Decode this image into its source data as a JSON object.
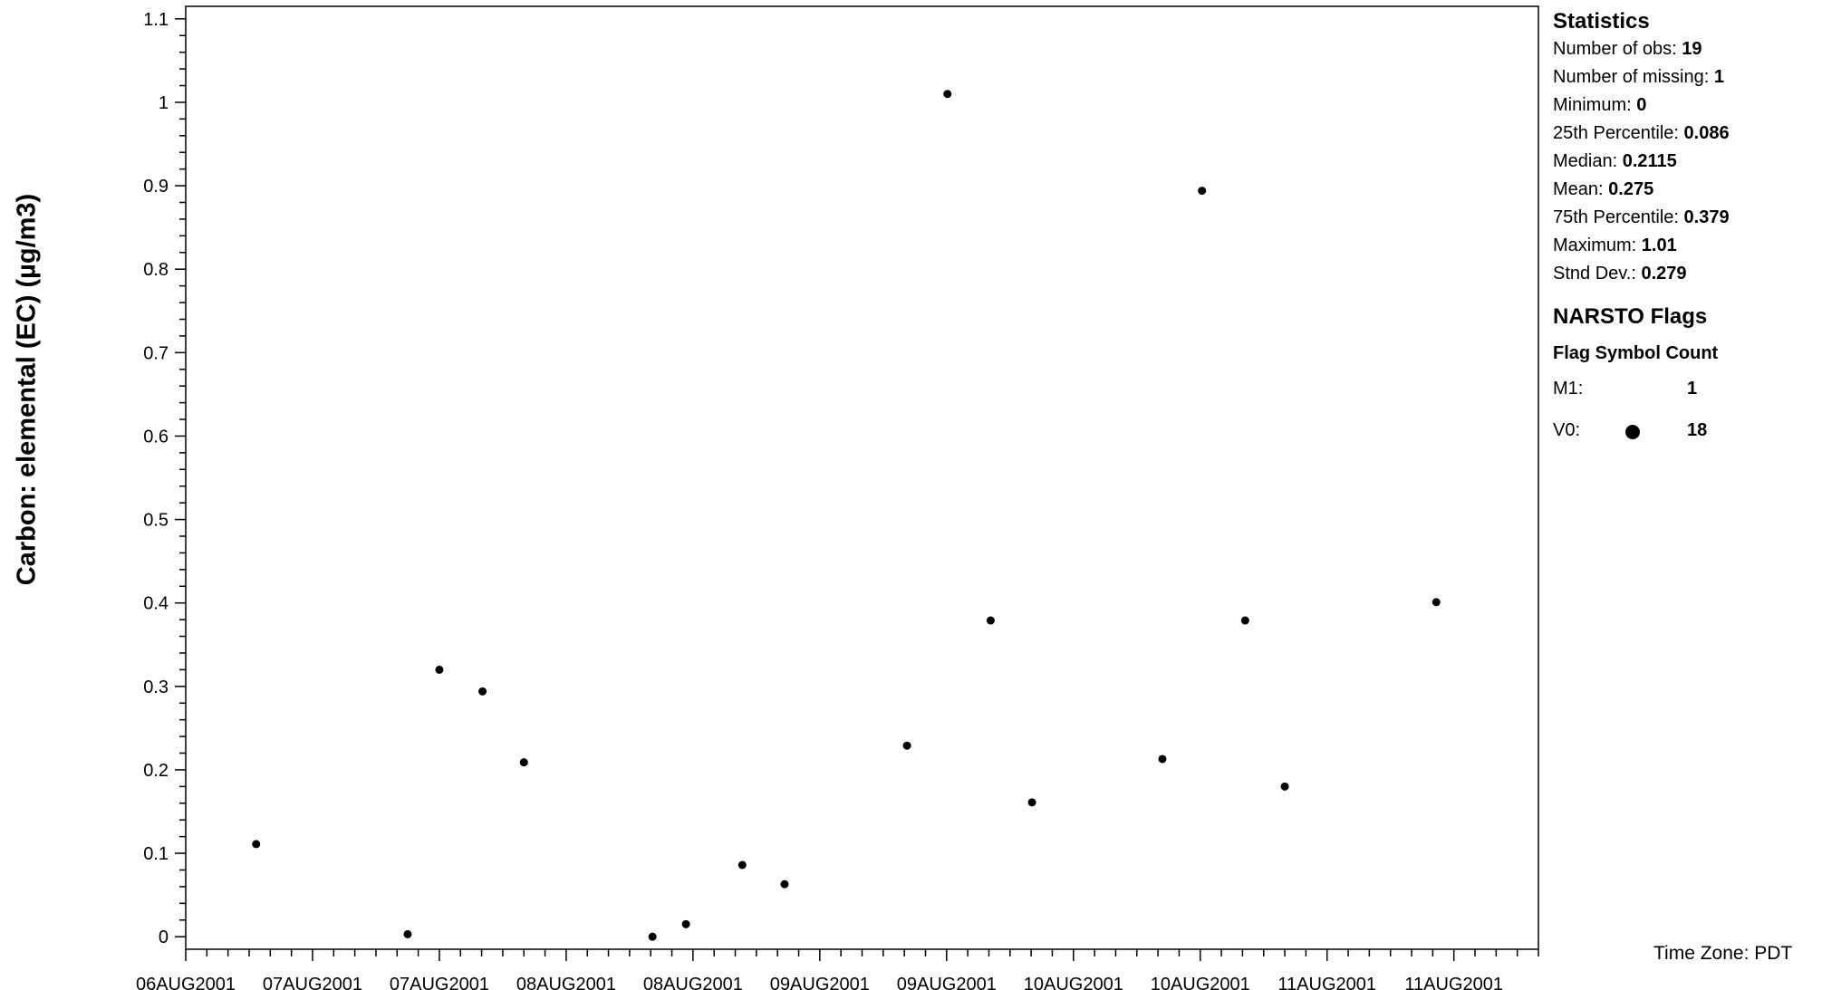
{
  "chart_data": {
    "type": "scatter",
    "ylabel": "Carbon: elemental (EC) (µg/m3)",
    "xlabel": "",
    "ylim": [
      -0.015,
      1.115
    ],
    "yticks": [
      "0",
      "0.1",
      "0.2",
      "0.3",
      "0.4",
      "0.5",
      "0.6",
      "0.7",
      "0.8",
      "0.9",
      "1",
      "1.1"
    ],
    "xlim": [
      "2001-08-06 00:00",
      "2001-08-11 08:00"
    ],
    "xtick_labels": [
      "06AUG2001",
      "07AUG2001",
      "07AUG2001",
      "08AUG2001",
      "08AUG2001",
      "09AUG2001",
      "09AUG2001",
      "10AUG2001",
      "10AUG2001",
      "11AUG2001",
      "11AUG2001"
    ],
    "xtick_times": [
      "2001-08-06 00:00",
      "2001-08-06 12:00",
      "2001-08-07 00:00",
      "2001-08-07 12:00",
      "2001-08-08 00:00",
      "2001-08-08 12:00",
      "2001-08-09 00:00",
      "2001-08-09 12:00",
      "2001-08-10 00:00",
      "2001-08-10 12:00",
      "2001-08-11 00:00"
    ],
    "grid": false,
    "points": [
      {
        "x": "2001-08-06 06:40",
        "y": 0.111
      },
      {
        "x": "2001-08-06 21:00",
        "y": 0.003
      },
      {
        "x": "2001-08-07 00:00",
        "y": 0.32
      },
      {
        "x": "2001-08-07 04:05",
        "y": 0.294
      },
      {
        "x": "2001-08-07 08:00",
        "y": 0.209
      },
      {
        "x": "2001-08-07 20:10",
        "y": 0.0
      },
      {
        "x": "2001-08-07 23:20",
        "y": 0.015
      },
      {
        "x": "2001-08-08 04:40",
        "y": 0.086
      },
      {
        "x": "2001-08-08 08:40",
        "y": 0.063
      },
      {
        "x": "2001-08-08 20:15",
        "y": 0.229
      },
      {
        "x": "2001-08-09 00:05",
        "y": 1.01
      },
      {
        "x": "2001-08-09 04:10",
        "y": 0.379
      },
      {
        "x": "2001-08-09 08:05",
        "y": 0.161
      },
      {
        "x": "2001-08-09 20:25",
        "y": 0.213
      },
      {
        "x": "2001-08-10 00:10",
        "y": 0.894
      },
      {
        "x": "2001-08-10 04:15",
        "y": 0.379
      },
      {
        "x": "2001-08-10 08:00",
        "y": 0.18
      },
      {
        "x": "2001-08-10 22:20",
        "y": 0.401
      }
    ]
  },
  "stats": {
    "title": "Statistics",
    "rows": [
      {
        "label": "Number of obs: ",
        "value": "19"
      },
      {
        "label": "Number of missing: ",
        "value": "1"
      },
      {
        "label": "Minimum: ",
        "value": "0"
      },
      {
        "label": "25th Percentile: ",
        "value": "0.086"
      },
      {
        "label": "Median: ",
        "value": "0.2115"
      },
      {
        "label": "Mean: ",
        "value": "0.275"
      },
      {
        "label": "75th Percentile: ",
        "value": "0.379"
      },
      {
        "label": "Maximum: ",
        "value": "1.01"
      },
      {
        "label": "Stnd Dev.: ",
        "value": "0.279"
      }
    ]
  },
  "flags": {
    "title": "NARSTO Flags",
    "header": "Flag Symbol Count",
    "rows": [
      {
        "code": "M1:",
        "symbol": "",
        "count": "1"
      },
      {
        "code": "V0:",
        "symbol": "dot",
        "count": "18"
      }
    ]
  },
  "timezone": "Time Zone: PDT"
}
